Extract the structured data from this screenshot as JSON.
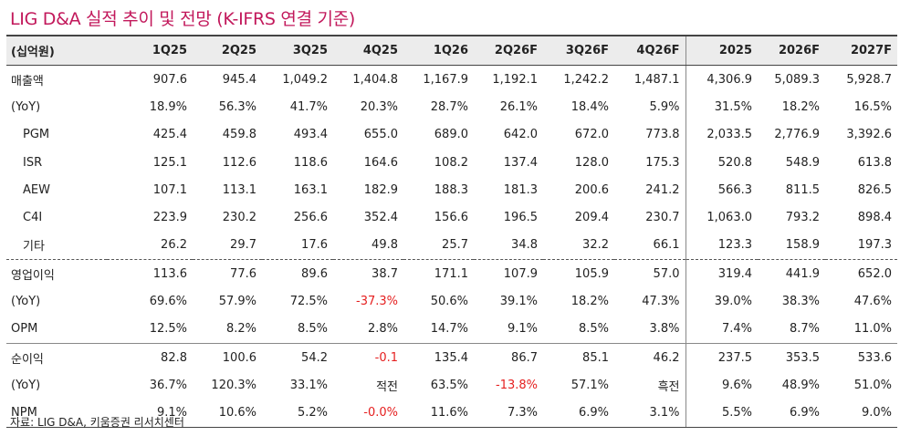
{
  "title": "LIG D&A 실적 추이 및 전망 (K-IFRS 연결 기준)",
  "table": {
    "corner": "(십억원)",
    "columns": [
      "1Q25",
      "2Q25",
      "3Q25",
      "4Q25",
      "1Q26",
      "2Q26F",
      "3Q26F",
      "4Q26F",
      "2025",
      "2026F",
      "2027F"
    ],
    "rows": [
      {
        "label": "매출액",
        "values": [
          "907.6",
          "945.4",
          "1,049.2",
          "1,404.8",
          "1,167.9",
          "1,192.1",
          "1,242.2",
          "1,487.1",
          "4,306.9",
          "5,089.3",
          "5,928.7"
        ]
      },
      {
        "label": "(YoY)",
        "values": [
          "18.9%",
          "56.3%",
          "41.7%",
          "20.3%",
          "28.7%",
          "26.1%",
          "18.4%",
          "5.9%",
          "31.5%",
          "18.2%",
          "16.5%"
        ]
      },
      {
        "label": "PGM",
        "values": [
          "425.4",
          "459.8",
          "493.4",
          "655.0",
          "689.0",
          "642.0",
          "672.0",
          "773.8",
          "2,033.5",
          "2,776.9",
          "3,392.6"
        ]
      },
      {
        "label": "ISR",
        "values": [
          "125.1",
          "112.6",
          "118.6",
          "164.6",
          "108.2",
          "137.4",
          "128.0",
          "175.3",
          "520.8",
          "548.9",
          "613.8"
        ]
      },
      {
        "label": "AEW",
        "values": [
          "107.1",
          "113.1",
          "163.1",
          "182.9",
          "188.3",
          "181.3",
          "200.6",
          "241.2",
          "566.3",
          "811.5",
          "826.5"
        ]
      },
      {
        "label": "C4I",
        "values": [
          "223.9",
          "230.2",
          "256.6",
          "352.4",
          "156.6",
          "196.5",
          "209.4",
          "230.7",
          "1,063.0",
          "793.2",
          "898.4"
        ]
      },
      {
        "label": "기타",
        "values": [
          "26.2",
          "29.7",
          "17.6",
          "49.8",
          "25.7",
          "34.8",
          "32.2",
          "66.1",
          "123.3",
          "158.9",
          "197.3"
        ]
      },
      {
        "label": "영업이익",
        "values": [
          "113.6",
          "77.6",
          "89.6",
          "38.7",
          "171.1",
          "107.9",
          "105.9",
          "57.0",
          "319.4",
          "441.9",
          "652.0"
        ]
      },
      {
        "label": "(YoY)",
        "values": [
          "69.6%",
          "57.9%",
          "72.5%",
          "-37.3%",
          "50.6%",
          "39.1%",
          "18.2%",
          "47.3%",
          "39.0%",
          "38.3%",
          "47.6%"
        ]
      },
      {
        "label": "OPM",
        "values": [
          "12.5%",
          "8.2%",
          "8.5%",
          "2.8%",
          "14.7%",
          "9.1%",
          "8.5%",
          "3.8%",
          "7.4%",
          "8.7%",
          "11.0%"
        ]
      },
      {
        "label": "순이익",
        "values": [
          "82.8",
          "100.6",
          "54.2",
          "-0.1",
          "135.4",
          "86.7",
          "85.1",
          "46.2",
          "237.5",
          "353.5",
          "533.6"
        ]
      },
      {
        "label": "(YoY)",
        "values": [
          "36.7%",
          "120.3%",
          "33.1%",
          "적전",
          "63.5%",
          "-13.8%",
          "57.1%",
          "흑전",
          "9.6%",
          "48.9%",
          "51.0%"
        ]
      },
      {
        "label": "NPM",
        "values": [
          "9.1%",
          "10.6%",
          "5.2%",
          "-0.0%",
          "11.6%",
          "7.3%",
          "6.9%",
          "3.1%",
          "5.5%",
          "6.9%",
          "9.0%"
        ]
      }
    ]
  },
  "source": "자료: LIG D&A, 키움증권 리서치센터",
  "colors": {
    "title": "#c2185b",
    "negative": "#e52020",
    "header_bg": "#ececec"
  }
}
